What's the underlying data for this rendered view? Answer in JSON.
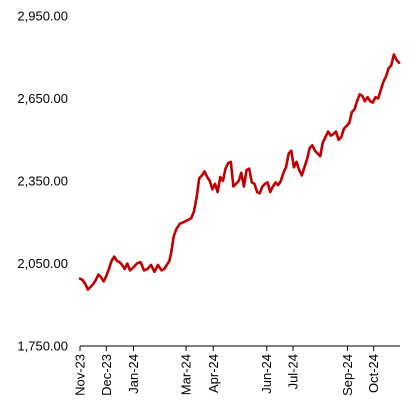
{
  "chart_data": {
    "type": "line",
    "title": "",
    "xlabel": "",
    "ylabel": "",
    "ylim": [
      1750,
      2950
    ],
    "xlim": [
      "2023-11-01",
      "2024-10-31"
    ],
    "yticks": [
      1750,
      2050,
      2350,
      2650,
      2950
    ],
    "ytick_labels": [
      "1,750.00",
      "2,050.00",
      "2,350.00",
      "2,650.00",
      "2,950.00"
    ],
    "xticks": [
      "2023-11-01",
      "2023-12-01",
      "2024-01-01",
      "2024-03-01",
      "2024-04-01",
      "2024-06-01",
      "2024-07-01",
      "2024-09-01",
      "2024-10-01"
    ],
    "xtick_labels": [
      "Nov-23",
      "Dec-23",
      "Jan-24",
      "Mar-24",
      "Apr-24",
      "Jun-24",
      "Jul-24",
      "Sep-24",
      "Oct-24"
    ],
    "grid": false,
    "legend": "none",
    "line_color": "#c00000",
    "series": [
      {
        "name": "",
        "x": [
          "2023-11-01",
          "2023-11-04",
          "2023-11-07",
          "2023-11-10",
          "2023-11-13",
          "2023-11-16",
          "2023-11-19",
          "2023-11-22",
          "2023-11-25",
          "2023-11-28",
          "2023-12-01",
          "2023-12-04",
          "2023-12-07",
          "2023-12-10",
          "2023-12-13",
          "2023-12-16",
          "2023-12-19",
          "2023-12-22",
          "2023-12-25",
          "2023-12-28",
          "2024-01-02",
          "2024-01-05",
          "2024-01-09",
          "2024-01-13",
          "2024-01-17",
          "2024-01-21",
          "2024-01-25",
          "2024-01-29",
          "2024-02-02",
          "2024-02-05",
          "2024-02-08",
          "2024-02-11",
          "2024-02-13",
          "2024-02-16",
          "2024-02-19",
          "2024-02-23",
          "2024-02-27",
          "2024-03-01",
          "2024-03-04",
          "2024-03-07",
          "2024-03-10",
          "2024-03-13",
          "2024-03-16",
          "2024-03-19",
          "2024-03-22",
          "2024-03-25",
          "2024-03-28",
          "2024-03-31",
          "2024-04-03",
          "2024-04-06",
          "2024-04-09",
          "2024-04-12",
          "2024-04-15",
          "2024-04-18",
          "2024-04-21",
          "2024-04-24",
          "2024-04-27",
          "2024-04-30",
          "2024-05-03",
          "2024-05-06",
          "2024-05-09",
          "2024-05-12",
          "2024-05-15",
          "2024-05-18",
          "2024-05-21",
          "2024-05-24",
          "2024-05-27",
          "2024-05-30",
          "2024-06-02",
          "2024-06-05",
          "2024-06-08",
          "2024-06-11",
          "2024-06-14",
          "2024-06-17",
          "2024-06-20",
          "2024-06-23",
          "2024-06-26",
          "2024-06-29",
          "2024-07-02",
          "2024-07-05",
          "2024-07-08",
          "2024-07-11",
          "2024-07-14",
          "2024-07-17",
          "2024-07-20",
          "2024-07-23",
          "2024-07-26",
          "2024-07-29",
          "2024-08-01",
          "2024-08-04",
          "2024-08-07",
          "2024-08-10",
          "2024-08-13",
          "2024-08-16",
          "2024-08-19",
          "2024-08-22",
          "2024-08-25",
          "2024-08-28",
          "2024-08-31",
          "2024-09-03",
          "2024-09-06",
          "2024-09-09",
          "2024-09-12",
          "2024-09-15",
          "2024-09-18",
          "2024-09-21",
          "2024-09-24",
          "2024-09-27",
          "2024-09-30",
          "2024-10-03",
          "2024-10-06",
          "2024-10-09",
          "2024-10-12",
          "2024-10-15",
          "2024-10-18",
          "2024-10-21",
          "2024-10-24",
          "2024-10-27",
          "2024-10-30"
        ],
        "values": [
          1995,
          1990,
          1975,
          1955,
          1965,
          1975,
          1990,
          2010,
          2000,
          1985,
          2005,
          2030,
          2060,
          2075,
          2060,
          2055,
          2045,
          2030,
          2050,
          2025,
          2040,
          2050,
          2055,
          2025,
          2030,
          2045,
          2020,
          2045,
          2025,
          2030,
          2045,
          2060,
          2090,
          2150,
          2175,
          2195,
          2200,
          2205,
          2210,
          2215,
          2240,
          2290,
          2360,
          2370,
          2385,
          2365,
          2350,
          2320,
          2340,
          2310,
          2365,
          2350,
          2395,
          2415,
          2420,
          2330,
          2340,
          2350,
          2380,
          2330,
          2390,
          2395,
          2345,
          2340,
          2310,
          2305,
          2330,
          2340,
          2345,
          2310,
          2330,
          2345,
          2335,
          2350,
          2380,
          2400,
          2450,
          2460,
          2400,
          2420,
          2390,
          2370,
          2400,
          2430,
          2470,
          2480,
          2460,
          2450,
          2440,
          2490,
          2510,
          2530,
          2515,
          2520,
          2530,
          2500,
          2510,
          2540,
          2550,
          2560,
          2600,
          2610,
          2640,
          2665,
          2660,
          2640,
          2655,
          2640,
          2635,
          2655,
          2650,
          2680,
          2710,
          2730,
          2760,
          2770,
          2810,
          2790,
          2780
        ]
      }
    ]
  }
}
